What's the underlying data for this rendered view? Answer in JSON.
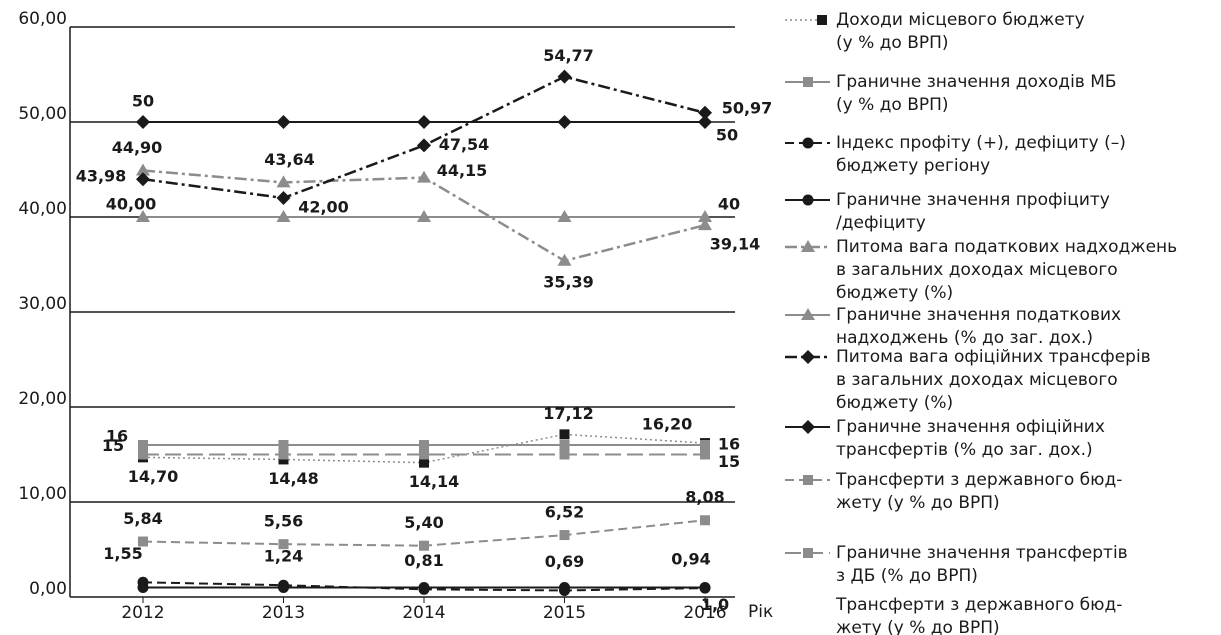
{
  "chart_data": {
    "type": "line",
    "x_label": "Рік",
    "categories": [
      "2012",
      "2013",
      "2014",
      "2015",
      "2016"
    ],
    "ylim": [
      0,
      60
    ],
    "yticks": [
      {
        "value": 0,
        "label": "0,00"
      },
      {
        "value": 10,
        "label": "10,00"
      },
      {
        "value": 20,
        "label": "20,00"
      },
      {
        "value": 30,
        "label": "30,00"
      },
      {
        "value": 40,
        "label": "40,00"
      },
      {
        "value": 50,
        "label": "50,00"
      },
      {
        "value": 60,
        "label": "60,00"
      }
    ],
    "grid": true,
    "legend": "right",
    "series": [
      {
        "name": "Доходи місцевого бюджету\n(у % до ВРП)",
        "color": "#8c8c8c",
        "marker_color": "#1a1a1a",
        "dash": "dotted",
        "marker": "square",
        "values": [
          14.7,
          14.48,
          14.14,
          17.12,
          16.2
        ],
        "value_labels": [
          "14,70",
          "14,48",
          "14,14",
          "17,12",
          "16,20"
        ]
      },
      {
        "name": "Граничне значення доходів МБ\n(у % до ВРП)",
        "color": "#8c8c8c",
        "dash": "solid",
        "marker": "square",
        "values": [
          16,
          16,
          16,
          16,
          16
        ],
        "value_labels": [
          "16",
          null,
          null,
          null,
          "16"
        ]
      },
      {
        "name": "Індекс профіту (+), дефіциту (–)\nбюджету регіону",
        "color": "#1a1a1a",
        "dash": "dashed",
        "marker": "circle",
        "values": [
          1.55,
          1.24,
          0.81,
          0.69,
          0.94
        ],
        "value_labels": [
          "1,55",
          "1,24",
          "0,81",
          "0,69",
          "0,94"
        ]
      },
      {
        "name": "Граничне значення профіциту\n/дефіциту",
        "color": "#1a1a1a",
        "dash": "solid",
        "marker": "circle",
        "values": [
          1,
          1,
          1,
          1,
          1
        ],
        "value_labels": [
          null,
          null,
          null,
          null,
          "1,0"
        ]
      },
      {
        "name": "Питома вага податкових надходжень\nв загальних доходах місцевого\nбюджету  (%)",
        "color": "#8c8c8c",
        "dash": "dashdot",
        "marker": "triangle",
        "values": [
          44.9,
          43.64,
          44.15,
          35.39,
          39.14
        ],
        "value_labels": [
          "44,90",
          "43,64",
          "44,15",
          "35,39",
          "39,14"
        ]
      },
      {
        "name": "Граничне значення податкових\nнадходжень (% до заг. дох.)",
        "color": "#8c8c8c",
        "dash": "solid",
        "marker": "triangle",
        "values": [
          40,
          40,
          40,
          40,
          40
        ],
        "value_labels": [
          "40,00",
          null,
          null,
          null,
          "40"
        ]
      },
      {
        "name": "Питома вага офіційних трансферів\nв загальних доходах місцевого\nбюджету (%)",
        "color": "#1a1a1a",
        "dash": "dashdot",
        "marker": "diamond",
        "values": [
          43.98,
          42.0,
          47.54,
          54.77,
          50.97
        ],
        "value_labels": [
          "43,98",
          "42,00",
          "47,54",
          "54,77",
          "50,97"
        ]
      },
      {
        "name": "Граничне значення офіційних\nтрансфертів  (% до заг. дох.)",
        "color": "#1a1a1a",
        "dash": "solid",
        "marker": "diamond",
        "values": [
          50,
          50,
          50,
          50,
          50
        ],
        "value_labels": [
          "50",
          null,
          null,
          null,
          "50"
        ]
      },
      {
        "name": "Трансферти з державного бюд-\nжету (у % до ВРП)",
        "color": "#8c8c8c",
        "dash": "dashed",
        "marker": "square",
        "values": [
          5.84,
          5.56,
          5.4,
          6.52,
          8.08
        ],
        "value_labels": [
          "5,84",
          "5,56",
          "5,40",
          "6,52",
          "8,08"
        ]
      },
      {
        "name": "Граничне значення трансфертів\nз ДБ (% до ВРП)",
        "color": "#8c8c8c",
        "dash": "longdash",
        "marker": "square",
        "values": [
          15,
          15,
          15,
          15,
          15
        ],
        "value_labels": [
          "15",
          null,
          null,
          null,
          "15"
        ]
      }
    ],
    "legend_note": "Трансферти з державного бюд-\nжету (у % до ВРП)"
  }
}
